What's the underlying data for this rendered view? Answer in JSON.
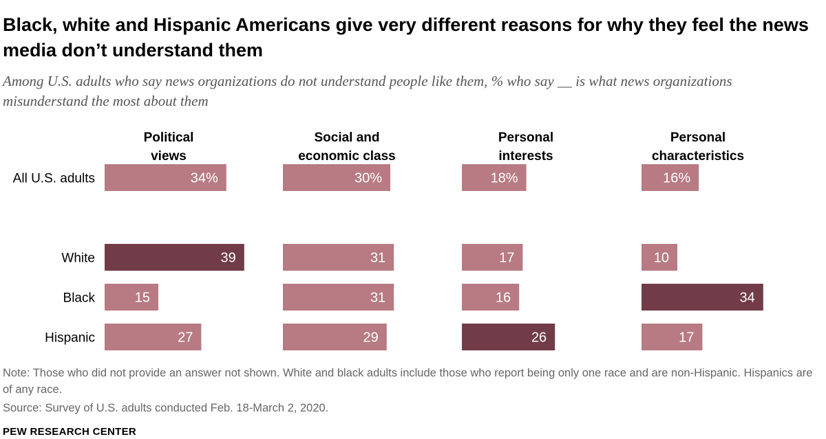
{
  "chart_data": {
    "type": "bar",
    "title": "Black, white and Hispanic Americans give very different reasons for why they feel the news media don’t understand them",
    "subtitle": "Among U.S. adults who say news organizations do not understand people like them, % who say __ is what news organizations misunderstand the most about them",
    "columns": [
      {
        "line1": "Political",
        "line2": "views"
      },
      {
        "line1": "Social and",
        "line2": "economic class"
      },
      {
        "line1": "Personal",
        "line2": "interests"
      },
      {
        "line1": "Personal",
        "line2": "characteristics"
      }
    ],
    "rows": [
      {
        "label": "All U.S. adults",
        "values": [
          34,
          30,
          18,
          16
        ],
        "labels": [
          "34%",
          "30%",
          "18%",
          "16%"
        ]
      },
      {
        "label": "White",
        "values": [
          39,
          31,
          17,
          10
        ],
        "labels": [
          "39",
          "31",
          "17",
          "10"
        ]
      },
      {
        "label": "Black",
        "values": [
          15,
          31,
          16,
          34
        ],
        "labels": [
          "15",
          "31",
          "16",
          "34"
        ]
      },
      {
        "label": "Hispanic",
        "values": [
          27,
          29,
          26,
          17
        ],
        "labels": [
          "27",
          "29",
          "26",
          "17"
        ]
      }
    ],
    "highlighted": [
      {
        "row": 1,
        "col": 0
      },
      {
        "row": 2,
        "col": 3
      },
      {
        "row": 3,
        "col": 2
      }
    ],
    "xlim": [
      0,
      40
    ],
    "unit": "%"
  },
  "colors": {
    "bar": "#b87a83",
    "highlight": "#713b47"
  },
  "note": "Note: Those who did not provide an answer not shown. White and black adults include those who report being only one race and are non-Hispanic. Hispanics are of any race.",
  "source": "Source: Survey of U.S. adults conducted Feb. 18-March 2, 2020.",
  "brand": "PEW RESEARCH CENTER"
}
